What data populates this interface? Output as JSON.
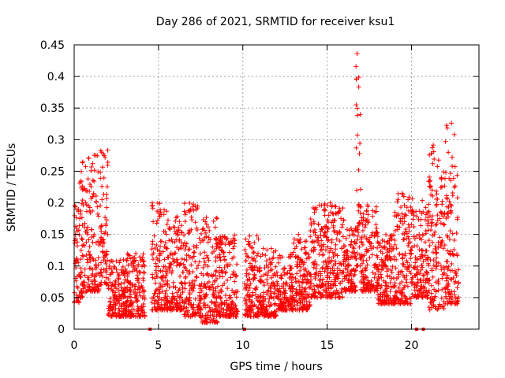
{
  "chart_data": {
    "type": "scatter",
    "title": "Day 286 of 2021, SRMTID for receiver ksu1",
    "xlabel": "GPS time / hours",
    "ylabel": "SRMTID / TECUs",
    "xlim": [
      0,
      24
    ],
    "ylim": [
      0,
      0.45
    ],
    "grid": true,
    "marker": "+",
    "color": "#ff0000",
    "x_ticks": [
      0,
      5,
      10,
      15,
      20
    ],
    "x_tick_labels": [
      "0",
      "5",
      "10",
      "15",
      "20"
    ],
    "y_ticks": [
      0,
      0.05,
      0.1,
      0.15,
      0.2,
      0.25,
      0.3,
      0.35,
      0.4,
      0.45
    ],
    "y_tick_labels": [
      "0",
      "0.05",
      "0.1",
      "0.15",
      "0.2",
      "0.25",
      "0.3",
      "0.35",
      "0.4",
      "0.45"
    ],
    "baseline_markers_x": [
      4.5,
      10.1,
      20.3,
      20.7
    ],
    "activity_profile": [
      {
        "x0": 0.0,
        "x1": 0.3,
        "lo": 0.04,
        "hi": 0.2
      },
      {
        "x0": 0.3,
        "x1": 0.8,
        "lo": 0.05,
        "hi": 0.27
      },
      {
        "x0": 0.8,
        "x1": 1.5,
        "lo": 0.06,
        "hi": 0.28
      },
      {
        "x0": 1.5,
        "x1": 2.0,
        "lo": 0.07,
        "hi": 0.3
      },
      {
        "x0": 2.0,
        "x1": 3.0,
        "lo": 0.02,
        "hi": 0.11
      },
      {
        "x0": 3.0,
        "x1": 4.2,
        "lo": 0.02,
        "hi": 0.12
      },
      {
        "x0": 4.6,
        "x1": 5.5,
        "lo": 0.03,
        "hi": 0.2
      },
      {
        "x0": 5.5,
        "x1": 6.5,
        "lo": 0.03,
        "hi": 0.18
      },
      {
        "x0": 6.5,
        "x1": 7.5,
        "lo": 0.02,
        "hi": 0.2
      },
      {
        "x0": 7.5,
        "x1": 8.5,
        "lo": 0.01,
        "hi": 0.18
      },
      {
        "x0": 8.5,
        "x1": 9.7,
        "lo": 0.02,
        "hi": 0.15
      },
      {
        "x0": 10.1,
        "x1": 11.0,
        "lo": 0.02,
        "hi": 0.15
      },
      {
        "x0": 11.0,
        "x1": 12.0,
        "lo": 0.02,
        "hi": 0.13
      },
      {
        "x0": 12.0,
        "x1": 13.0,
        "lo": 0.03,
        "hi": 0.12
      },
      {
        "x0": 13.0,
        "x1": 14.0,
        "lo": 0.03,
        "hi": 0.15
      },
      {
        "x0": 14.0,
        "x1": 15.0,
        "lo": 0.05,
        "hi": 0.2
      },
      {
        "x0": 15.0,
        "x1": 16.0,
        "lo": 0.05,
        "hi": 0.2
      },
      {
        "x0": 16.0,
        "x1": 16.7,
        "lo": 0.06,
        "hi": 0.16
      },
      {
        "x0": 16.7,
        "x1": 17.0,
        "lo": 0.1,
        "hi": 0.44
      },
      {
        "x0": 17.0,
        "x1": 18.0,
        "lo": 0.06,
        "hi": 0.2
      },
      {
        "x0": 18.0,
        "x1": 19.0,
        "lo": 0.04,
        "hi": 0.15
      },
      {
        "x0": 19.0,
        "x1": 20.0,
        "lo": 0.04,
        "hi": 0.22
      },
      {
        "x0": 20.0,
        "x1": 21.0,
        "lo": 0.05,
        "hi": 0.21
      },
      {
        "x0": 21.0,
        "x1": 22.0,
        "lo": 0.03,
        "hi": 0.3
      },
      {
        "x0": 22.0,
        "x1": 22.8,
        "lo": 0.04,
        "hi": 0.33
      }
    ]
  }
}
